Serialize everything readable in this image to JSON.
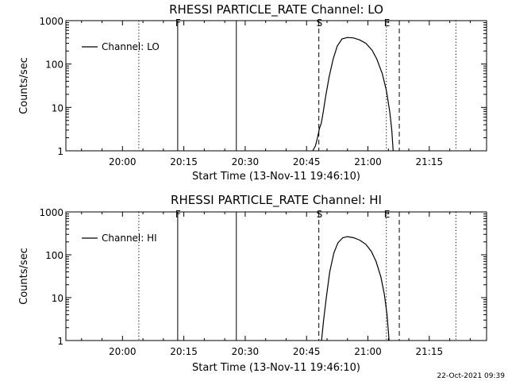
{
  "footer_timestamp": "22-Oct-2021 09:39",
  "chart_data": [
    {
      "type": "line",
      "title": "RHESSI PARTICLE_RATE Channel: LO",
      "xlabel": "Start Time (13-Nov-11 19:46:10)",
      "ylabel": "Counts/sec",
      "yscale": "log",
      "ylim": [
        1,
        1000
      ],
      "xlim": [
        "19:46:10",
        "21:29:00"
      ],
      "x_ticks": [
        "20:00",
        "20:15",
        "20:30",
        "20:45",
        "21:00",
        "21:15"
      ],
      "y_ticks": [
        "1",
        "10",
        "100",
        "1000"
      ],
      "legend": {
        "position": "top-left",
        "entries": [
          "Channel: LO"
        ]
      },
      "grid": false,
      "markers": [
        {
          "label": "F",
          "time": "20:13:30",
          "style": "solid"
        },
        {
          "label": "",
          "time": "20:27:50",
          "style": "solid"
        },
        {
          "label": "",
          "time": "20:04:00",
          "style": "dotted"
        },
        {
          "label": "S",
          "time": "20:48:00",
          "style": "dashed"
        },
        {
          "label": "E",
          "time": "21:04:30",
          "style": "dotted"
        },
        {
          "label": "",
          "time": "21:07:40",
          "style": "dashed"
        },
        {
          "label": "",
          "time": "21:21:30",
          "style": "dotted"
        }
      ],
      "series": [
        {
          "name": "Channel: LO",
          "points": [
            [
              "20:46:30",
              1.0
            ],
            [
              "20:47:10",
              1.3
            ],
            [
              "20:47:40",
              2.0
            ],
            [
              "20:48:10",
              3.3
            ],
            [
              "20:48:35",
              4.3
            ],
            [
              "20:49:00",
              7
            ],
            [
              "20:49:40",
              18
            ],
            [
              "20:50:30",
              50
            ],
            [
              "20:51:30",
              130
            ],
            [
              "20:52:30",
              260
            ],
            [
              "20:53:40",
              380
            ],
            [
              "20:55:00",
              410
            ],
            [
              "20:56:30",
              400
            ],
            [
              "20:58:00",
              360
            ],
            [
              "20:59:30",
              300
            ],
            [
              "21:01:00",
              210
            ],
            [
              "21:02:10",
              130
            ],
            [
              "21:03:30",
              60
            ],
            [
              "21:04:30",
              25
            ],
            [
              "21:05:20",
              8
            ],
            [
              "21:05:50",
              3
            ],
            [
              "21:06:10",
              1.0
            ]
          ]
        }
      ]
    },
    {
      "type": "line",
      "title": "RHESSI PARTICLE_RATE Channel: HI",
      "xlabel": "Start Time (13-Nov-11 19:46:10)",
      "ylabel": "Counts/sec",
      "yscale": "log",
      "ylim": [
        1,
        1000
      ],
      "xlim": [
        "19:46:10",
        "21:29:00"
      ],
      "x_ticks": [
        "20:00",
        "20:15",
        "20:30",
        "20:45",
        "21:00",
        "21:15"
      ],
      "y_ticks": [
        "1",
        "10",
        "100",
        "1000"
      ],
      "legend": {
        "position": "top-left",
        "entries": [
          "Channel: HI"
        ]
      },
      "grid": false,
      "markers": [
        {
          "label": "F",
          "time": "20:13:30",
          "style": "solid"
        },
        {
          "label": "",
          "time": "20:27:50",
          "style": "solid"
        },
        {
          "label": "",
          "time": "20:04:00",
          "style": "dotted"
        },
        {
          "label": "S",
          "time": "20:48:00",
          "style": "dashed"
        },
        {
          "label": "E",
          "time": "21:04:30",
          "style": "dotted"
        },
        {
          "label": "",
          "time": "21:07:40",
          "style": "dashed"
        },
        {
          "label": "",
          "time": "21:21:30",
          "style": "dotted"
        }
      ],
      "series": [
        {
          "name": "Channel: HI",
          "points": [
            [
              "20:48:40",
              1.0
            ],
            [
              "20:49:10",
              3
            ],
            [
              "20:49:50",
              10
            ],
            [
              "20:50:40",
              40
            ],
            [
              "20:51:40",
              110
            ],
            [
              "20:52:40",
              190
            ],
            [
              "20:53:50",
              250
            ],
            [
              "20:55:00",
              265
            ],
            [
              "20:56:30",
              250
            ],
            [
              "20:58:00",
              220
            ],
            [
              "20:59:30",
              175
            ],
            [
              "21:00:50",
              120
            ],
            [
              "21:02:00",
              70
            ],
            [
              "21:03:10",
              30
            ],
            [
              "21:04:00",
              12
            ],
            [
              "21:04:40",
              4
            ],
            [
              "21:05:10",
              1.0
            ]
          ]
        }
      ]
    }
  ]
}
